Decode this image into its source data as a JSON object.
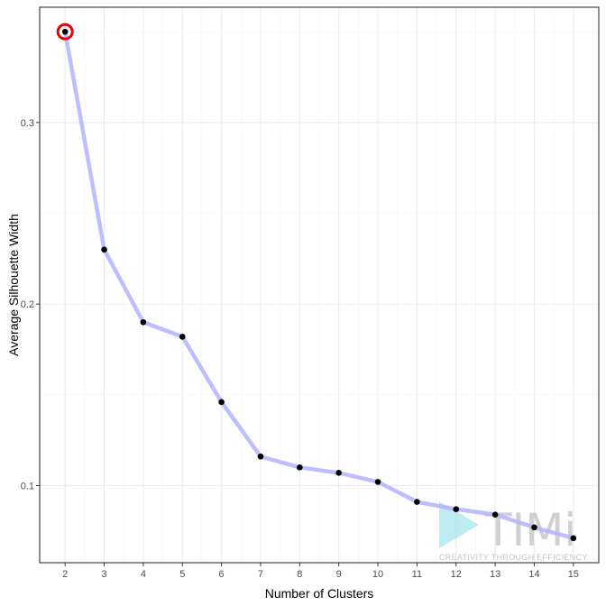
{
  "chart_data": {
    "type": "line",
    "title": "",
    "xlabel": "Number of Clusters",
    "ylabel": "Average Silhouette Width",
    "x": [
      2,
      3,
      4,
      5,
      6,
      7,
      8,
      9,
      10,
      11,
      12,
      13,
      14,
      15
    ],
    "categories": [
      "2",
      "3",
      "4",
      "5",
      "6",
      "7",
      "8",
      "9",
      "10",
      "11",
      "12",
      "13",
      "14",
      "15"
    ],
    "series": [
      {
        "values": [
          0.35,
          0.23,
          0.19,
          0.182,
          0.146,
          0.116,
          0.11,
          0.107,
          0.102,
          0.091,
          0.087,
          0.084,
          0.077,
          0.071
        ]
      }
    ],
    "highlight": {
      "x": 2,
      "y": 0.35
    },
    "xlim": [
      1.35,
      15.65
    ],
    "ylim": [
      0.0575,
      0.3635
    ],
    "yticks": [
      0.1,
      0.2,
      0.3
    ],
    "ytick_labels": [
      "0.1",
      "0.2",
      "0.3"
    ],
    "grid": true,
    "legend": "none",
    "colors": {
      "line": "#b3b3ff",
      "point": "#000000",
      "highlight": "#e60000",
      "panel_border": "#333333",
      "grid_major": "#ebebeb",
      "grid_minor": "#f5f5f5",
      "watermark_triangle": "#8fe0ea"
    }
  },
  "watermark": {
    "brand": "TIMi",
    "tagline": "CREATIVITY THROUGH EFFICIENCY"
  }
}
